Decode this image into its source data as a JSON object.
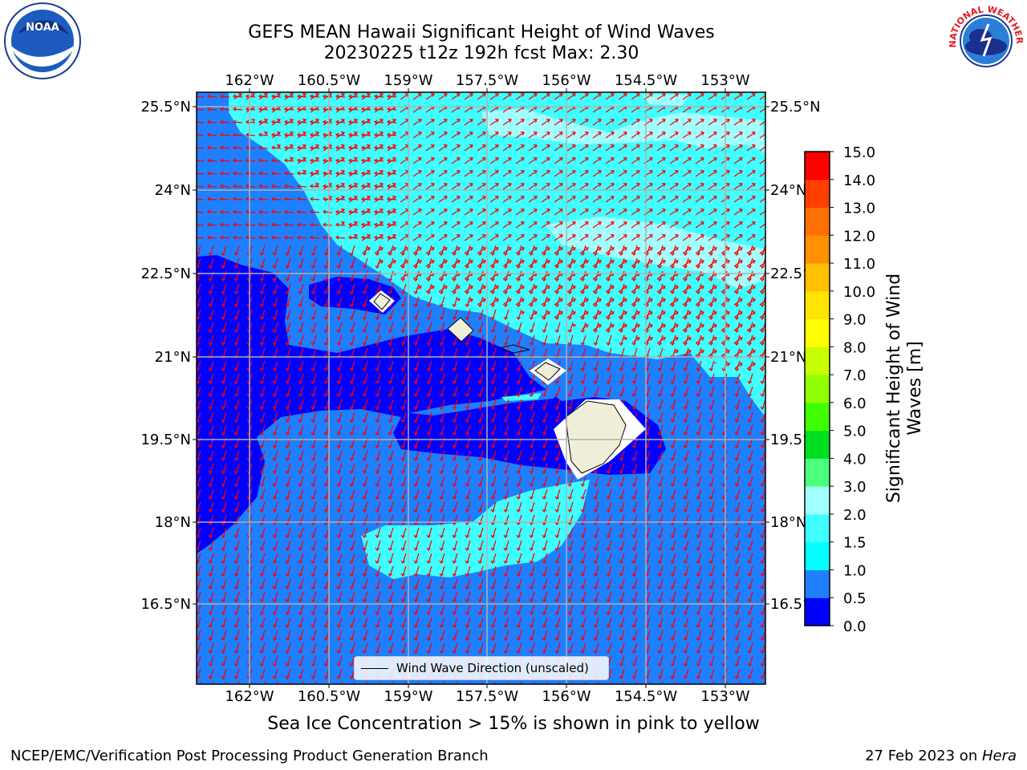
{
  "title_line1": "GEFS MEAN Hawaii Significant Height of Wind Waves",
  "title_line2": "20230225 t12z 192h fcst   Max: 2.30",
  "lon_labels": [
    "162°W",
    "160.5°W",
    "159°W",
    "157.5°W",
    "156°W",
    "154.5°W",
    "153°W"
  ],
  "lat_labels": [
    "25.5°N",
    "24°N",
    "22.5°N",
    "21°N",
    "19.5°N",
    "18°N",
    "16.5°N"
  ],
  "colorbar": {
    "title": "Significant Height of Wind Waves [m]",
    "ticks": [
      "0.0",
      "0.5",
      "1.0",
      "1.5",
      "2.0",
      "3.0",
      "4.0",
      "5.0",
      "6.0",
      "7.0",
      "8.0",
      "9.0",
      "10.0",
      "11.0",
      "12.0",
      "13.0",
      "14.0",
      "15.0"
    ],
    "colors": [
      "#0000ff",
      "#1e7fff",
      "#00ffff",
      "#40ffff",
      "#a0ffff",
      "#4cff7c",
      "#00e020",
      "#40ff00",
      "#90ff00",
      "#c8ff00",
      "#ffff00",
      "#ffe400",
      "#ffc000",
      "#ff9000",
      "#ff7000",
      "#ff4000",
      "#ff0000"
    ]
  },
  "legend_label": "Wind Wave Direction (unscaled)",
  "note": "Sea Ice Concentration > 15% is shown in pink to yellow",
  "footer_left": "NCEP/EMC/Verification Post Processing Product Generation Branch",
  "footer_right_date": "27 Feb 2023 on ",
  "footer_right_host": "Hera",
  "logo_left_text": "NOAA",
  "logo_right_text": "NATIONAL WEATHER SERVICE"
}
